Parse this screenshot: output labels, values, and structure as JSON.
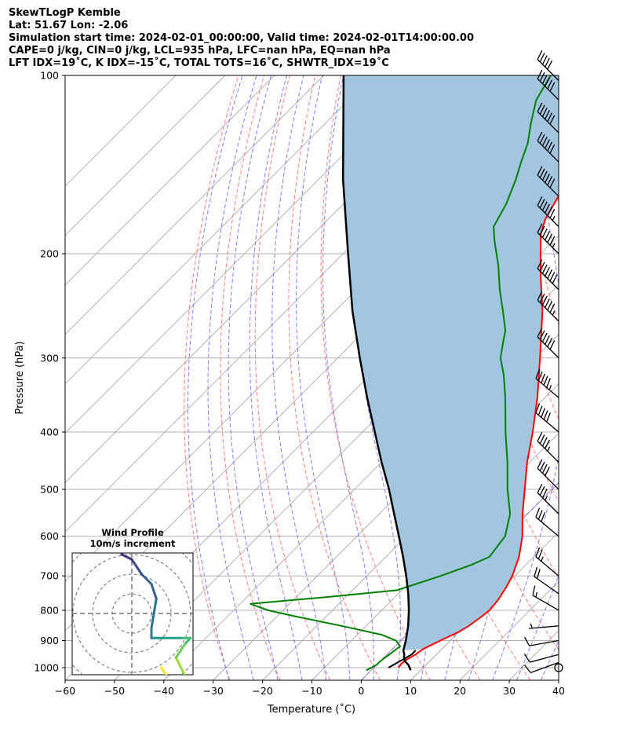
{
  "header": {
    "line1": "SkewTLogP Kemble",
    "line2": "Lat: 51.67   Lon: -2.06",
    "line3": "Simulation start time: 2024-02-01_00:00:00, Valid time: 2024-02-01T14:00:00.00",
    "line4": "CAPE=0 j/kg, CIN=0 j/kg, LCL=935 hPa, LFC=nan hPa, EQ=nan hPa",
    "line5": "LFT IDX=19˚C, K IDX=-15˚C, TOTAL TOTS=16˚C, SHWTR_IDX=19˚C"
  },
  "hodograph": {
    "title": "Wind Profile",
    "subtitle": "10m/s increment"
  },
  "colors": {
    "temperature": "#ff0000",
    "dewpoint": "#008000",
    "parcel": "#000000",
    "cape_fill": "#a2c5e0",
    "dry_adiabat": "#ff6666",
    "moist_adiabat": "#6666ff",
    "isotherm": "#aaaaaa",
    "zero_isotherm": "#9b30ff"
  },
  "chart_data": {
    "type": "line",
    "skew": "skew-T log-P",
    "xlabel": "Temperature (˚C)",
    "ylabel": "Pressure (hPa)",
    "xlim": [
      -60,
      40
    ],
    "ylim": [
      1050,
      100
    ],
    "y_scale": "log",
    "grid": true,
    "xticks": [
      "−60",
      "−50",
      "−40",
      "−30",
      "−20",
      "−10",
      "0",
      "10",
      "20",
      "30",
      "40"
    ],
    "yticks": [
      "100",
      "200",
      "300",
      "400",
      "500",
      "600",
      "700",
      "800",
      "900",
      "1000"
    ],
    "series": [
      {
        "key": "temperature",
        "points": [
          [
            1000,
            5.0
          ],
          [
            985,
            4.8
          ],
          [
            970,
            5.0
          ],
          [
            950,
            5.8
          ],
          [
            930,
            6.2
          ],
          [
            900,
            8.0
          ],
          [
            870,
            10.0
          ],
          [
            850,
            10.8
          ],
          [
            820,
            11.5
          ],
          [
            800,
            11.8
          ],
          [
            770,
            11.5
          ],
          [
            730,
            10.5
          ],
          [
            700,
            9.5
          ],
          [
            650,
            7.0
          ],
          [
            600,
            3.5
          ],
          [
            550,
            -1.0
          ],
          [
            500,
            -5.5
          ],
          [
            450,
            -10.5
          ],
          [
            400,
            -15.5
          ],
          [
            350,
            -21.5
          ],
          [
            300,
            -29.0
          ],
          [
            250,
            -38.0
          ],
          [
            220,
            -45.0
          ],
          [
            200,
            -50.0
          ],
          [
            185,
            -54.0
          ],
          [
            175,
            -56.0
          ],
          [
            160,
            -58.0
          ],
          [
            145,
            -59.5
          ],
          [
            130,
            -61.0
          ],
          [
            115,
            -62.5
          ],
          [
            100,
            -63.5
          ]
        ]
      },
      {
        "key": "dewpoint",
        "points": [
          [
            1010,
            -1.0
          ],
          [
            1000,
            -0.5
          ],
          [
            990,
            0.0
          ],
          [
            975,
            0.0
          ],
          [
            950,
            0.5
          ],
          [
            920,
            1.0
          ],
          [
            900,
            -1.0
          ],
          [
            880,
            -5.0
          ],
          [
            850,
            -15.0
          ],
          [
            820,
            -26.0
          ],
          [
            800,
            -33.0
          ],
          [
            780,
            -38.0
          ],
          [
            760,
            -24.0
          ],
          [
            740,
            -11.0
          ],
          [
            700,
            -5.0
          ],
          [
            670,
            -1.0
          ],
          [
            650,
            1.0
          ],
          [
            600,
            0.0
          ],
          [
            550,
            -3.5
          ],
          [
            500,
            -9.0
          ],
          [
            450,
            -14.5
          ],
          [
            400,
            -21.0
          ],
          [
            350,
            -28.0
          ],
          [
            320,
            -33.0
          ],
          [
            300,
            -37.0
          ],
          [
            280,
            -40.0
          ],
          [
            270,
            -41.5
          ],
          [
            250,
            -46.0
          ],
          [
            230,
            -51.0
          ],
          [
            210,
            -56.0
          ],
          [
            190,
            -62.0
          ],
          [
            180,
            -65.0
          ],
          [
            165,
            -67.0
          ],
          [
            150,
            -70.0
          ],
          [
            140,
            -72.5
          ],
          [
            130,
            -75.0
          ],
          [
            120,
            -78.5
          ],
          [
            110,
            -82.0
          ],
          [
            100,
            -84.0
          ]
        ]
      },
      {
        "key": "parcel",
        "points": [
          [
            1010,
            8.0
          ],
          [
            990,
            6.5
          ],
          [
            975,
            5.0
          ],
          [
            960,
            4.0
          ],
          [
            950,
            3.5
          ],
          [
            935,
            2.5
          ],
          [
            900,
            1.0
          ],
          [
            850,
            -1.5
          ],
          [
            800,
            -4.5
          ],
          [
            750,
            -8.0
          ],
          [
            700,
            -12.0
          ],
          [
            650,
            -16.5
          ],
          [
            600,
            -21.5
          ],
          [
            550,
            -27.0
          ],
          [
            500,
            -33.0
          ],
          [
            450,
            -40.0
          ],
          [
            400,
            -47.5
          ],
          [
            350,
            -56.0
          ],
          [
            300,
            -65.5
          ],
          [
            250,
            -76.5
          ],
          [
            200,
            -89.0
          ],
          [
            150,
            -105.0
          ],
          [
            100,
            -126.0
          ]
        ]
      },
      {
        "key": "parcel_low",
        "points": [
          [
            1000,
            3.0
          ],
          [
            975,
            4.0
          ],
          [
            950,
            5.0
          ],
          [
            935,
            5.0
          ]
        ]
      }
    ],
    "wind_barbs": [
      {
        "p": 1000,
        "speed_kt": 0,
        "dir_deg": 0
      },
      {
        "p": 980,
        "speed_kt": 10,
        "dir_deg": 250
      },
      {
        "p": 950,
        "speed_kt": 10,
        "dir_deg": 255
      },
      {
        "p": 900,
        "speed_kt": 10,
        "dir_deg": 260
      },
      {
        "p": 850,
        "speed_kt": 5,
        "dir_deg": 265
      },
      {
        "p": 800,
        "speed_kt": 15,
        "dir_deg": 300
      },
      {
        "p": 750,
        "speed_kt": 20,
        "dir_deg": 305
      },
      {
        "p": 700,
        "speed_kt": 25,
        "dir_deg": 310
      },
      {
        "p": 600,
        "speed_kt": 30,
        "dir_deg": 310
      },
      {
        "p": 550,
        "speed_kt": 35,
        "dir_deg": 315
      },
      {
        "p": 500,
        "speed_kt": 40,
        "dir_deg": 315
      },
      {
        "p": 450,
        "speed_kt": 45,
        "dir_deg": 315
      },
      {
        "p": 400,
        "speed_kt": 50,
        "dir_deg": 310
      },
      {
        "p": 350,
        "speed_kt": 55,
        "dir_deg": 310
      },
      {
        "p": 300,
        "speed_kt": 60,
        "dir_deg": 315
      },
      {
        "p": 260,
        "speed_kt": 65,
        "dir_deg": 315
      },
      {
        "p": 230,
        "speed_kt": 70,
        "dir_deg": 315
      },
      {
        "p": 200,
        "speed_kt": 65,
        "dir_deg": 315
      },
      {
        "p": 180,
        "speed_kt": 65,
        "dir_deg": 315
      },
      {
        "p": 160,
        "speed_kt": 60,
        "dir_deg": 315
      },
      {
        "p": 140,
        "speed_kt": 60,
        "dir_deg": 315
      },
      {
        "p": 125,
        "speed_kt": 60,
        "dir_deg": 315
      },
      {
        "p": 110,
        "speed_kt": 60,
        "dir_deg": 315
      },
      {
        "p": 102,
        "speed_kt": 50,
        "dir_deg": 315
      }
    ],
    "hodograph": {
      "ring_increment_ms": 10,
      "points": [
        [
          6,
          -11
        ],
        [
          8,
          -14
        ],
        [
          10,
          -16
        ],
        [
          11,
          -13
        ],
        [
          9,
          -9
        ],
        [
          11,
          -6
        ],
        [
          12,
          -5
        ],
        [
          10,
          -5
        ],
        [
          6,
          -5
        ],
        [
          4,
          -5
        ],
        [
          4,
          -3
        ],
        [
          5,
          3
        ],
        [
          4,
          6
        ],
        [
          2,
          8
        ],
        [
          0,
          11
        ],
        [
          -2,
          12
        ],
        [
          -3,
          14
        ],
        [
          -4,
          14
        ]
      ]
    }
  }
}
